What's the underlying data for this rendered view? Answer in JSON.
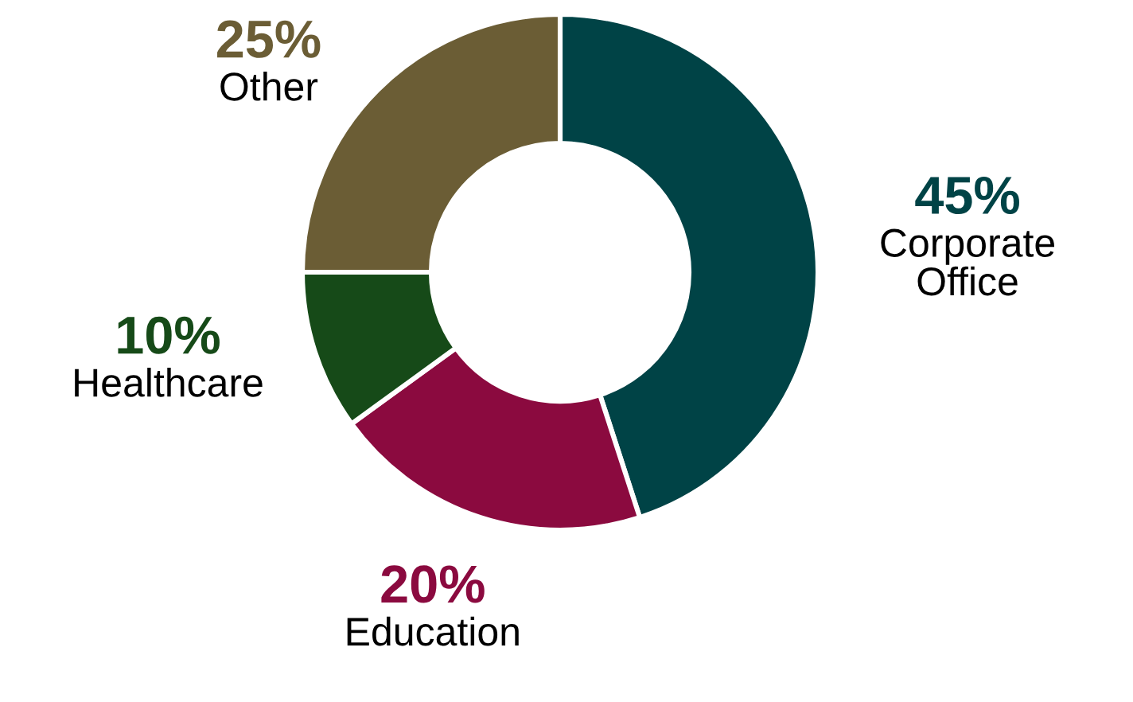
{
  "chart_data": {
    "type": "donut",
    "categories": [
      "Corporate Office",
      "Education",
      "Healthcare",
      "Other"
    ],
    "values": [
      45,
      20,
      10,
      25
    ],
    "colors": [
      "#004346",
      "#8b0a3f",
      "#164a18",
      "#6b5d35"
    ],
    "value_labels": [
      "45%",
      "20%",
      "10%",
      "25%"
    ]
  }
}
